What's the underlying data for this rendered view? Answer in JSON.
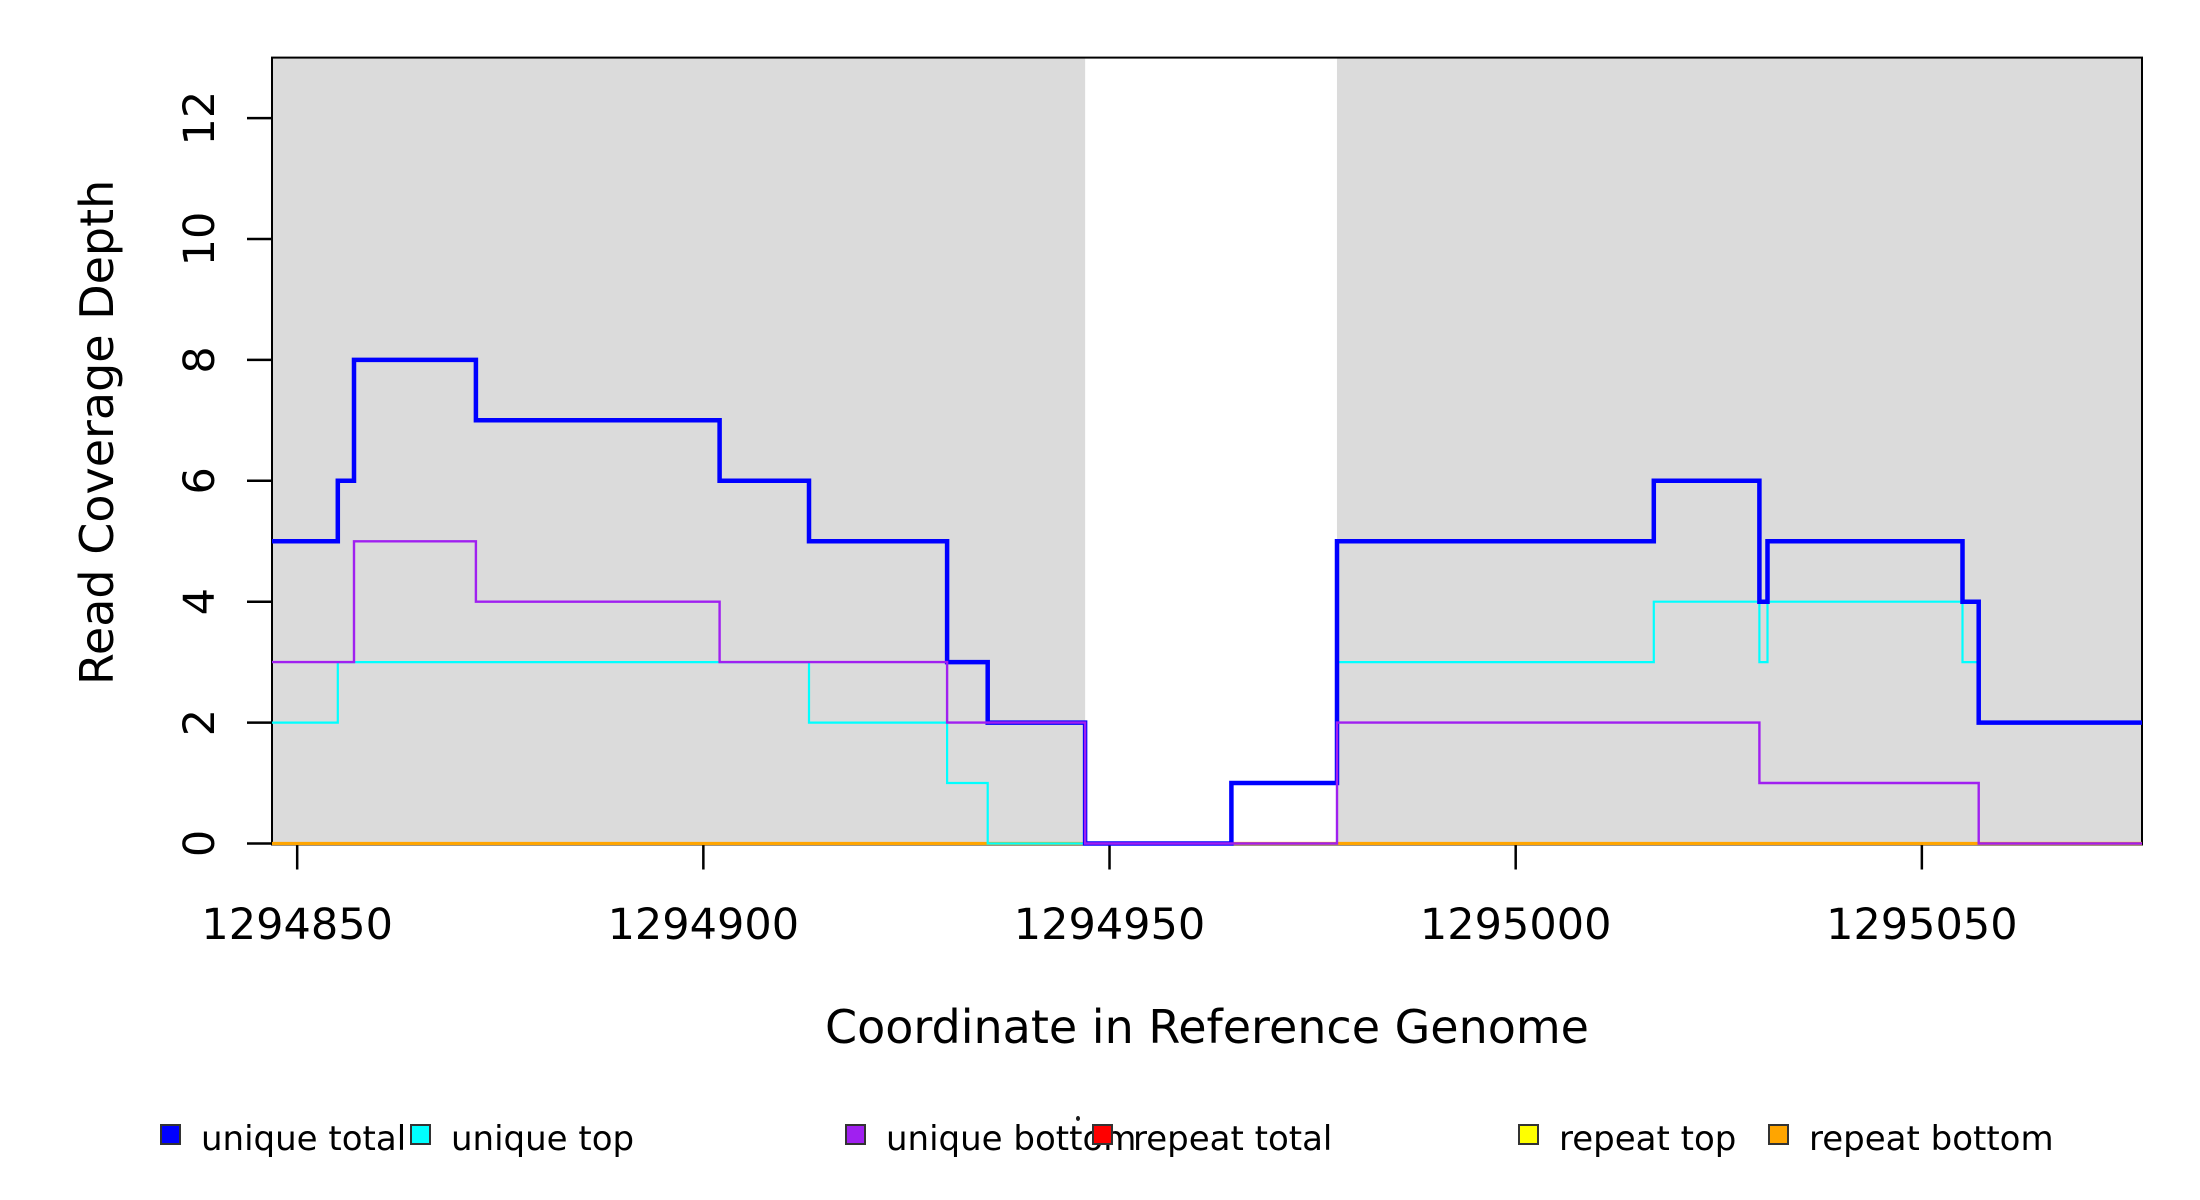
{
  "chart_data": {
    "type": "line",
    "step": "after",
    "xlabel": "Coordinate in Reference Genome",
    "ylabel": "Read Coverage Depth",
    "xlim": [
      1294846.9,
      1295077.1
    ],
    "ylim": [
      0,
      13
    ],
    "x_ticks": [
      1294850,
      1294900,
      1294950,
      1295000,
      1295050
    ],
    "y_ticks": [
      0,
      2,
      4,
      6,
      8,
      10,
      12
    ],
    "grid": false,
    "background_regions": [
      {
        "name": "gray-band-left",
        "x0": 1294846.9,
        "x1": 1294947,
        "color": "#DBDBDB"
      },
      {
        "name": "gray-band-right",
        "x0": 1294978,
        "x1": 1295077.1,
        "color": "#DBDBDB"
      }
    ],
    "series": [
      {
        "name": "repeat total",
        "color": "#FF0000",
        "width": 2,
        "points": [
          [
            1294846.9,
            0
          ]
        ],
        "end": 1295077.1
      },
      {
        "name": "repeat top",
        "color": "#FFFF00",
        "width": 2,
        "points": [
          [
            1294846.9,
            0
          ]
        ],
        "end": 1295077.1
      },
      {
        "name": "repeat bottom",
        "color": "#FFA500",
        "width": 3.2,
        "points": [
          [
            1294846.9,
            0
          ]
        ],
        "end": 1295077.1
      },
      {
        "name": "unique top",
        "color": "#00FFFF",
        "width": 2.2,
        "points": [
          [
            1294846.9,
            2
          ],
          [
            1294855,
            3
          ],
          [
            1294913,
            2
          ],
          [
            1294930,
            1
          ],
          [
            1294935,
            0
          ],
          [
            1294965,
            1
          ],
          [
            1294978,
            3
          ],
          [
            1295017,
            4
          ],
          [
            1295030,
            3
          ],
          [
            1295031,
            4
          ],
          [
            1295055,
            3
          ],
          [
            1295057,
            2
          ]
        ],
        "end": 1295077.1
      },
      {
        "name": "unique total",
        "color": "#0000FF",
        "width": 4.5,
        "points": [
          [
            1294846.9,
            5
          ],
          [
            1294855,
            6
          ],
          [
            1294857,
            8
          ],
          [
            1294872,
            7
          ],
          [
            1294902,
            6
          ],
          [
            1294913,
            5
          ],
          [
            1294930,
            3
          ],
          [
            1294935,
            2
          ],
          [
            1294947,
            0
          ],
          [
            1294965,
            1
          ],
          [
            1294978,
            5
          ],
          [
            1295017,
            6
          ],
          [
            1295030,
            4
          ],
          [
            1295031,
            5
          ],
          [
            1295055,
            4
          ],
          [
            1295057,
            2
          ]
        ],
        "end": 1295077.1
      },
      {
        "name": "unique bottom",
        "color": "#A020F0",
        "width": 2.4,
        "points": [
          [
            1294846.9,
            3
          ],
          [
            1294857,
            5
          ],
          [
            1294872,
            4
          ],
          [
            1294902,
            3
          ],
          [
            1294930,
            2
          ],
          [
            1294947,
            0
          ],
          [
            1294978,
            2
          ],
          [
            1295030,
            1
          ],
          [
            1295057,
            0
          ]
        ],
        "end": 1295077.1
      }
    ]
  },
  "axes": {
    "x_title": "Coordinate in Reference Genome",
    "y_title": "Read Coverage Depth"
  },
  "legend": {
    "items": [
      {
        "label": "unique total",
        "color": "#0000FF"
      },
      {
        "label": "unique top",
        "color": "#00FFFF"
      },
      {
        "label": "unique bottom",
        "color": "#A020F0"
      },
      {
        "label": "repeat total",
        "color": "#FF0000"
      },
      {
        "label": "repeat top",
        "color": "#FFFF00"
      },
      {
        "label": "repeat bottom",
        "color": "#FFA500"
      }
    ]
  },
  "style_colors": {
    "band": "#DBDBDB",
    "axis": "#000000",
    "background": "#FFFFFF"
  }
}
